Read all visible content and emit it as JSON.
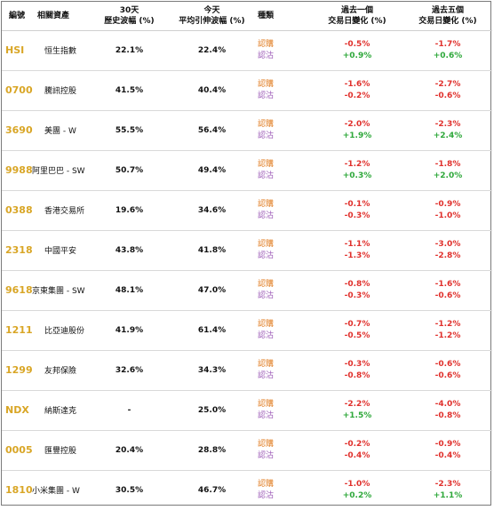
{
  "headers": {
    "code": "編號",
    "asset": "相關資產",
    "hv_1": "30天",
    "hv_2": "歷史波幅 (%)",
    "iv_1": "今天",
    "iv_2": "平均引伸波幅 (%)",
    "kind": "種類",
    "d1_1": "過去一個",
    "d1_2": "交易日變化 (%)",
    "d5_1": "過去五個",
    "d5_2": "交易日變化 (%)"
  },
  "labels": {
    "call": "認購",
    "put": "認沽"
  },
  "colors": {
    "code": "#d9a626",
    "call": "#e07a1c",
    "put": "#9b59b6",
    "negative": "#e0302c",
    "positive": "#2ea83a"
  },
  "rows": [
    {
      "code": "HSI",
      "asset": "恒生指數",
      "hv": "22.1%",
      "iv": "22.4%",
      "d1_call": "-0.5%",
      "d1_put": "+0.9%",
      "d5_call": "-1.7%",
      "d5_put": "+0.6%"
    },
    {
      "code": "0700",
      "asset": "騰訊控股",
      "hv": "41.5%",
      "iv": "40.4%",
      "d1_call": "-1.6%",
      "d1_put": "-0.2%",
      "d5_call": "-2.7%",
      "d5_put": "-0.6%"
    },
    {
      "code": "3690",
      "asset": "美團 - W",
      "hv": "55.5%",
      "iv": "56.4%",
      "d1_call": "-2.0%",
      "d1_put": "+1.9%",
      "d5_call": "-2.3%",
      "d5_put": "+2.4%"
    },
    {
      "code": "9988",
      "asset": "阿里巴巴 - SW",
      "hv": "50.7%",
      "iv": "49.4%",
      "d1_call": "-1.2%",
      "d1_put": "+0.3%",
      "d5_call": "-1.8%",
      "d5_put": "+2.0%"
    },
    {
      "code": "0388",
      "asset": "香港交易所",
      "hv": "19.6%",
      "iv": "34.6%",
      "d1_call": "-0.1%",
      "d1_put": "-0.3%",
      "d5_call": "-0.9%",
      "d5_put": "-1.0%"
    },
    {
      "code": "2318",
      "asset": "中國平安",
      "hv": "43.8%",
      "iv": "41.8%",
      "d1_call": "-1.1%",
      "d1_put": "-1.3%",
      "d5_call": "-3.0%",
      "d5_put": "-2.8%"
    },
    {
      "code": "9618",
      "asset": "京東集團 - SW",
      "hv": "48.1%",
      "iv": "47.0%",
      "d1_call": "-0.8%",
      "d1_put": "-0.3%",
      "d5_call": "-1.6%",
      "d5_put": "-0.6%"
    },
    {
      "code": "1211",
      "asset": "比亞迪股份",
      "hv": "41.9%",
      "iv": "61.4%",
      "d1_call": "-0.7%",
      "d1_put": "-0.5%",
      "d5_call": "-1.2%",
      "d5_put": "-1.2%"
    },
    {
      "code": "1299",
      "asset": "友邦保險",
      "hv": "32.6%",
      "iv": "34.3%",
      "d1_call": "-0.3%",
      "d1_put": "-0.8%",
      "d5_call": "-0.6%",
      "d5_put": "-0.6%"
    },
    {
      "code": "NDX",
      "asset": "納斯達克",
      "hv": "-",
      "iv": "25.0%",
      "d1_call": "-2.2%",
      "d1_put": "+1.5%",
      "d5_call": "-4.0%",
      "d5_put": "-0.8%"
    },
    {
      "code": "0005",
      "asset": "匯豐控股",
      "hv": "20.4%",
      "iv": "28.8%",
      "d1_call": "-0.2%",
      "d1_put": "-0.4%",
      "d5_call": "-0.9%",
      "d5_put": "-0.4%"
    },
    {
      "code": "1810",
      "asset": "小米集團 - W",
      "hv": "30.5%",
      "iv": "46.7%",
      "d1_call": "-1.0%",
      "d1_put": "+0.2%",
      "d5_call": "-2.3%",
      "d5_put": "+1.1%"
    }
  ]
}
